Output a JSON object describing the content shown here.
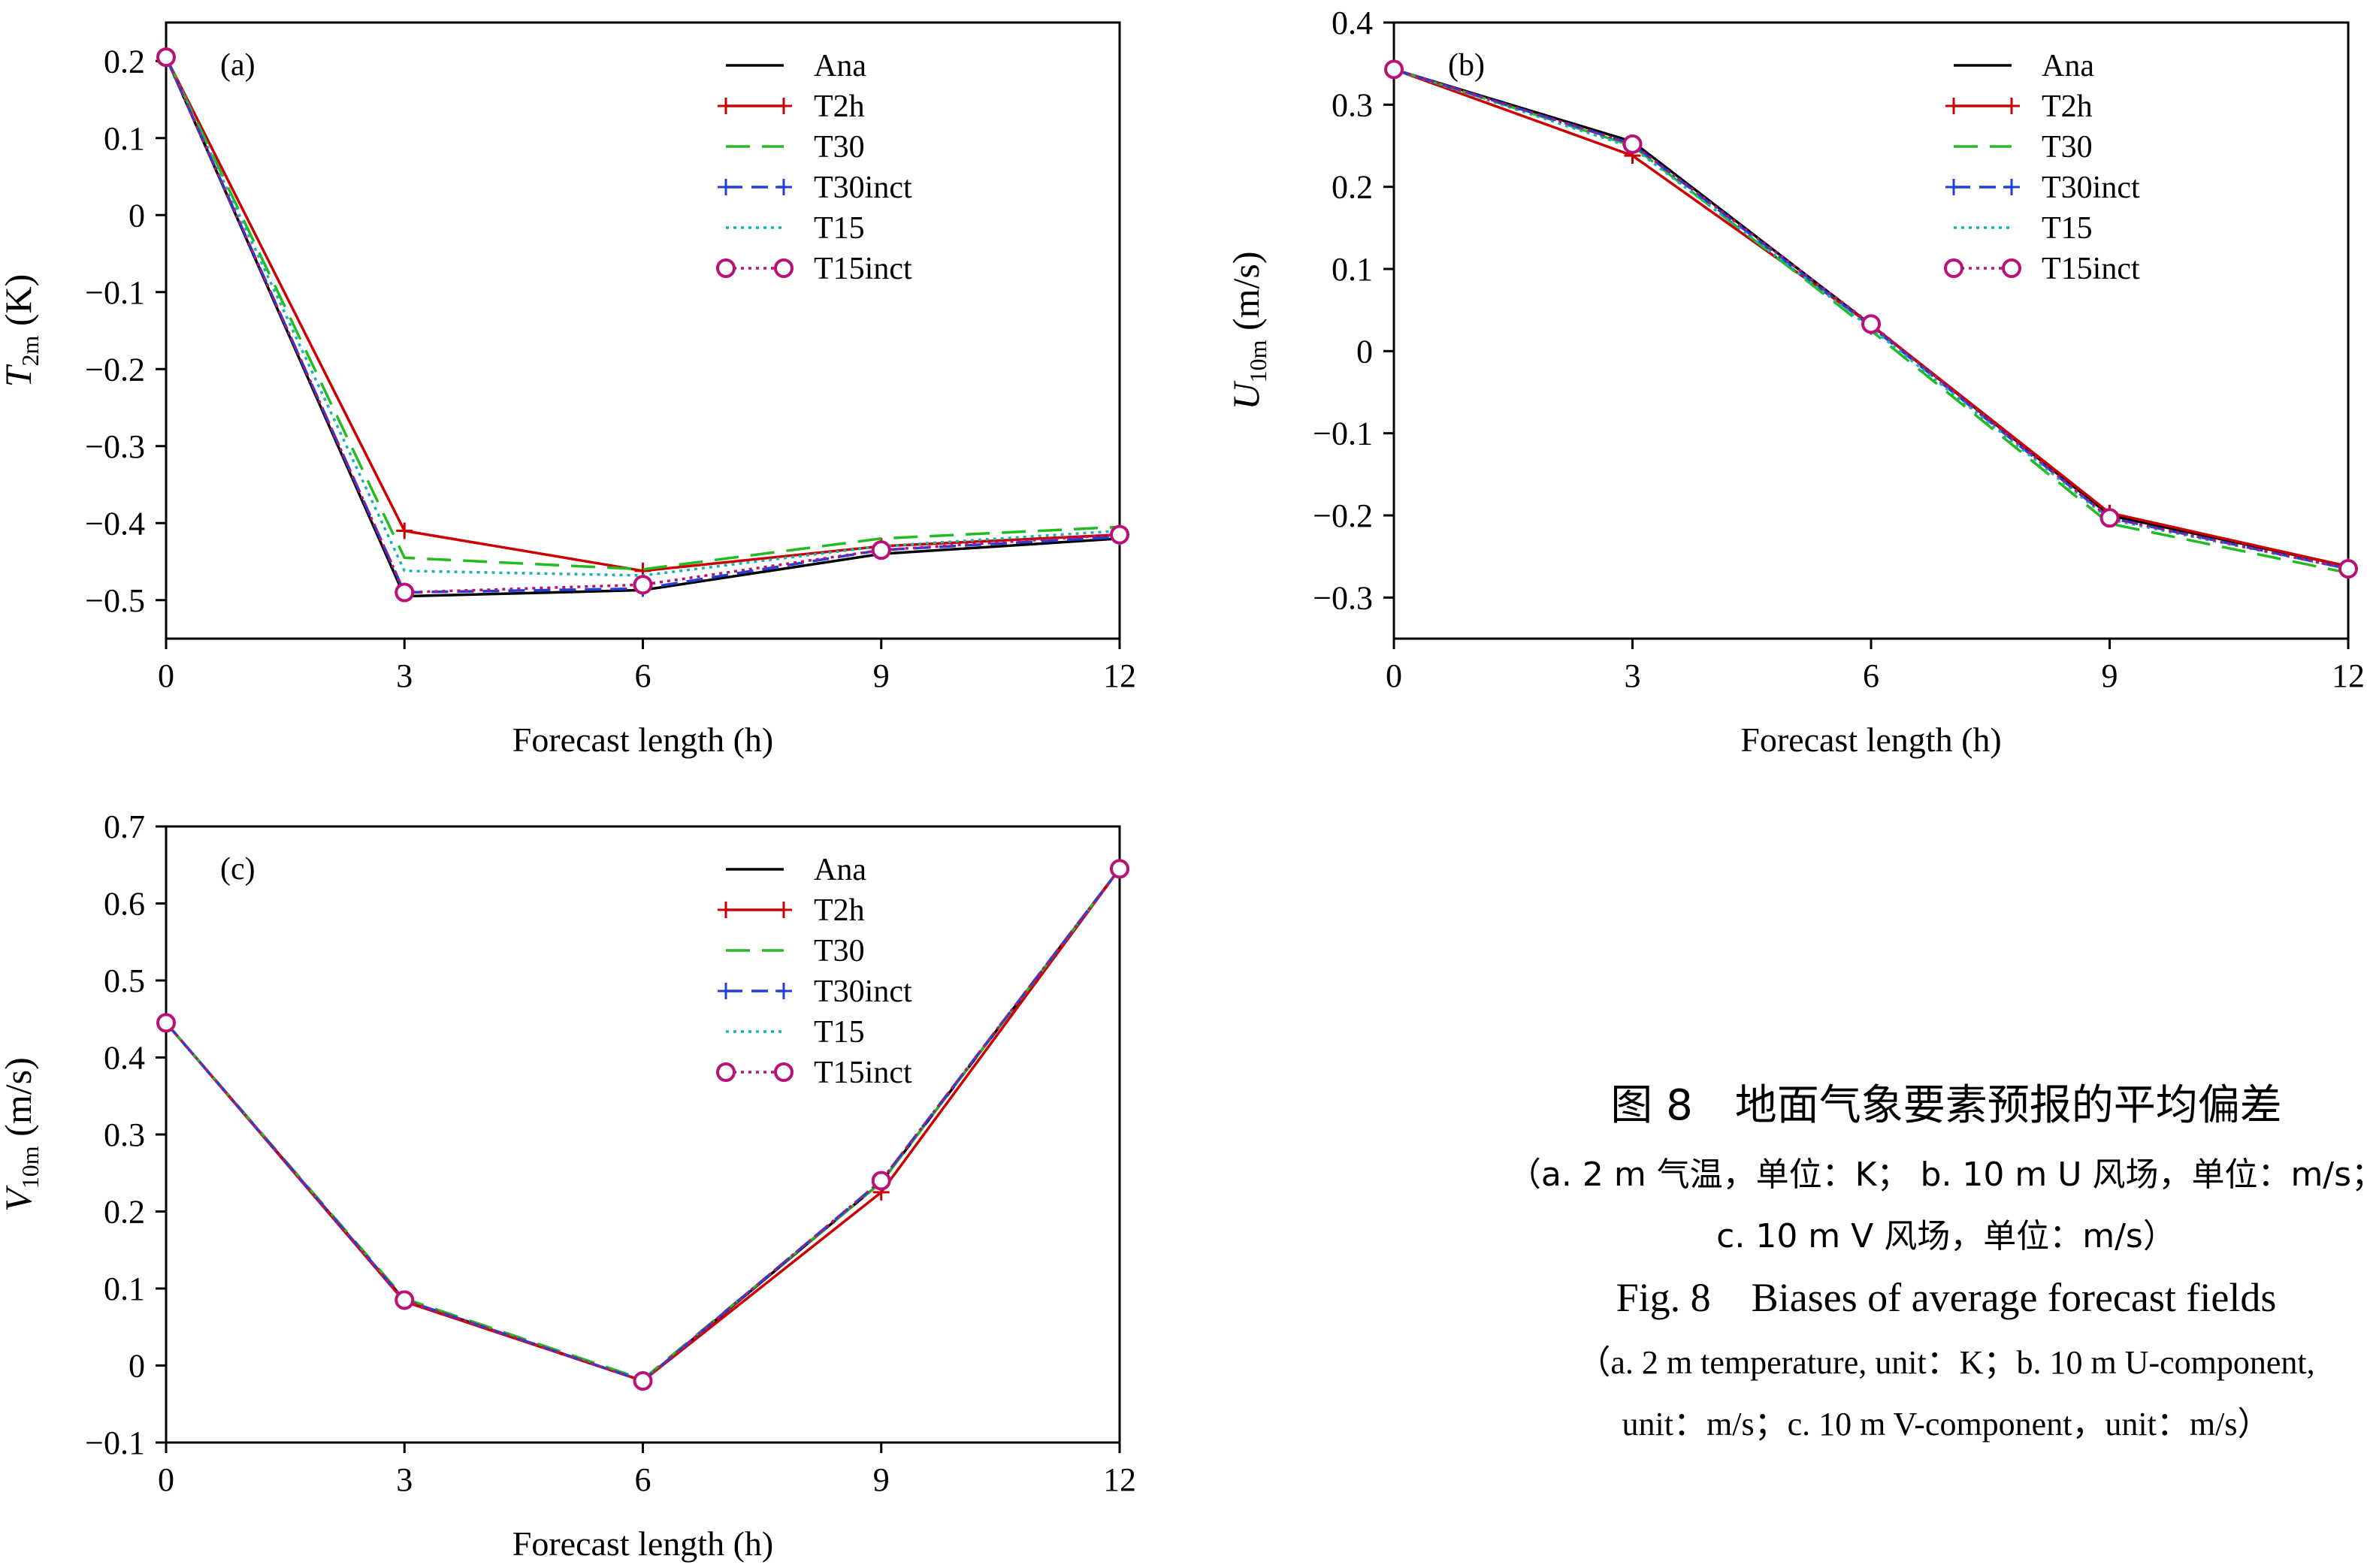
{
  "caption": {
    "zh_title": "图 8　地面气象要素预报的平均偏差",
    "zh_line1": "（a. 2 m 气温，单位：K； b. 10 m U 风场，单位：m/s；",
    "zh_line2": "c. 10 m V 风场，单位：m/s）",
    "en_title": "Fig. 8　Biases of average forecast fields",
    "en_line1": "（a. 2 m temperature, unit：K；b. 10 m U-component,",
    "en_line2": "unit：m/s；c. 10 m V-component，unit：m/s）"
  },
  "series_styles": [
    {
      "name": "Ana",
      "color": "#000000",
      "dash": "",
      "marker": "none"
    },
    {
      "name": "T2h",
      "color": "#cc0000",
      "dash": "",
      "marker": "plus"
    },
    {
      "name": "T30",
      "color": "#22bb22",
      "dash": "32,16",
      "marker": "none"
    },
    {
      "name": "T30inct",
      "color": "#1f3fd6",
      "dash": "22,12",
      "marker": "plus"
    },
    {
      "name": "T15",
      "color": "#19b3b3",
      "dash": "4,6",
      "marker": "none"
    },
    {
      "name": "T15inct",
      "color": "#bb1177",
      "dash": "4,6",
      "marker": "circle"
    }
  ],
  "chart_data": [
    {
      "type": "line",
      "panel": "(a)",
      "xlabel": "Forecast length (h)",
      "ylabel_main": "T",
      "ylabel_sub": "2m",
      "ylabel_unit": " (K)",
      "x": [
        0,
        3,
        6,
        9,
        12
      ],
      "xlim": [
        0,
        12
      ],
      "ylim": [
        -0.55,
        0.25
      ],
      "xticks": [
        0,
        3,
        6,
        9,
        12
      ],
      "yticks": [
        0.2,
        0.1,
        0,
        -0.1,
        -0.2,
        -0.3,
        -0.4,
        -0.5
      ],
      "ytick_labels": [
        "0.2",
        "0.1",
        "0",
        "−0.1",
        "−0.2",
        "−0.3",
        "−0.4",
        "−0.5"
      ],
      "legend_position": "top-right",
      "series": [
        {
          "name": "Ana",
          "values": [
            0.205,
            -0.495,
            -0.487,
            -0.44,
            -0.42
          ]
        },
        {
          "name": "T2h",
          "values": [
            0.205,
            -0.41,
            -0.462,
            -0.43,
            -0.415
          ]
        },
        {
          "name": "T30",
          "values": [
            0.205,
            -0.445,
            -0.46,
            -0.42,
            -0.405
          ]
        },
        {
          "name": "T30inct",
          "values": [
            0.205,
            -0.49,
            -0.485,
            -0.435,
            -0.418
          ]
        },
        {
          "name": "T15",
          "values": [
            0.205,
            -0.462,
            -0.468,
            -0.43,
            -0.41
          ]
        },
        {
          "name": "T15inct",
          "values": [
            0.205,
            -0.49,
            -0.48,
            -0.435,
            -0.415
          ]
        }
      ]
    },
    {
      "type": "line",
      "panel": "(b)",
      "xlabel": "Forecast length (h)",
      "ylabel_main": "U",
      "ylabel_sub": "10m",
      "ylabel_unit": " (m/s)",
      "x": [
        0,
        3,
        6,
        9,
        12
      ],
      "xlim": [
        0,
        12
      ],
      "ylim": [
        -0.35,
        0.4
      ],
      "xticks": [
        0,
        3,
        6,
        9,
        12
      ],
      "yticks": [
        0.4,
        0.3,
        0.2,
        0.1,
        0,
        -0.1,
        -0.2,
        -0.3
      ],
      "ytick_labels": [
        "0.4",
        "0.3",
        "0.2",
        "0.1",
        "0",
        "−0.1",
        "−0.2",
        "−0.3"
      ],
      "legend_position": "top-right",
      "series": [
        {
          "name": "Ana",
          "values": [
            0.343,
            0.255,
            0.032,
            -0.2,
            -0.262
          ]
        },
        {
          "name": "T2h",
          "values": [
            0.343,
            0.238,
            0.032,
            -0.197,
            -0.262
          ]
        },
        {
          "name": "T30",
          "values": [
            0.343,
            0.25,
            0.025,
            -0.21,
            -0.27
          ]
        },
        {
          "name": "T30inct",
          "values": [
            0.343,
            0.252,
            0.03,
            -0.203,
            -0.265
          ]
        },
        {
          "name": "T15",
          "values": [
            0.343,
            0.248,
            0.028,
            -0.205,
            -0.265
          ]
        },
        {
          "name": "T15inct",
          "values": [
            0.343,
            0.252,
            0.033,
            -0.203,
            -0.265
          ]
        }
      ]
    },
    {
      "type": "line",
      "panel": "(c)",
      "xlabel": "Forecast length (h)",
      "ylabel_main": "V",
      "ylabel_sub": "10m",
      "ylabel_unit": " (m/s)",
      "x": [
        0,
        3,
        6,
        9,
        12
      ],
      "xlim": [
        0,
        12
      ],
      "ylim": [
        -0.1,
        0.7
      ],
      "xticks": [
        0,
        3,
        6,
        9,
        12
      ],
      "yticks": [
        0.7,
        0.6,
        0.5,
        0.4,
        0.3,
        0.2,
        0.1,
        0,
        -0.1
      ],
      "ytick_labels": [
        "0.7",
        "0.6",
        "0.5",
        "0.4",
        "0.3",
        "0.2",
        "0.1",
        "0",
        "−0.1"
      ],
      "legend_position": "top-right",
      "series": [
        {
          "name": "Ana",
          "values": [
            0.445,
            0.085,
            -0.02,
            0.238,
            0.645
          ]
        },
        {
          "name": "T2h",
          "values": [
            0.445,
            0.083,
            -0.02,
            0.225,
            0.645
          ]
        },
        {
          "name": "T30",
          "values": [
            0.445,
            0.087,
            -0.018,
            0.238,
            0.645
          ]
        },
        {
          "name": "T30inct",
          "values": [
            0.445,
            0.085,
            -0.02,
            0.24,
            0.645
          ]
        },
        {
          "name": "T15",
          "values": [
            0.445,
            0.085,
            -0.02,
            0.24,
            0.645
          ]
        },
        {
          "name": "T15inct",
          "values": [
            0.445,
            0.085,
            -0.02,
            0.24,
            0.645
          ]
        }
      ]
    }
  ]
}
